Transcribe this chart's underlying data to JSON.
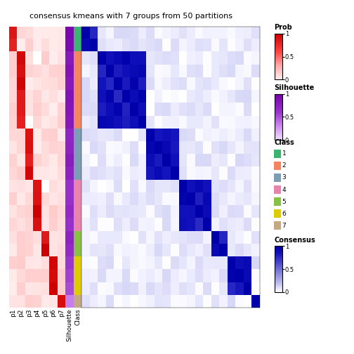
{
  "title": "consensus kmeans with 7 groups from 50 partitions",
  "group_sizes": [
    2,
    6,
    4,
    4,
    2,
    3,
    1
  ],
  "class_colors": {
    "1": "#3CB371",
    "2": "#F4845F",
    "3": "#7B9EB5",
    "4": "#E884AC",
    "5": "#88C044",
    "6": "#DDCC00",
    "7": "#C4A882"
  },
  "p_labels": [
    "p1",
    "p2",
    "p3",
    "p4",
    "p5",
    "p6",
    "p7"
  ],
  "sil_by_group": [
    0.93,
    0.82,
    0.74,
    0.65,
    0.7,
    0.55,
    0.3
  ],
  "figsize": [
    5.04,
    5.04
  ],
  "dpi": 100
}
